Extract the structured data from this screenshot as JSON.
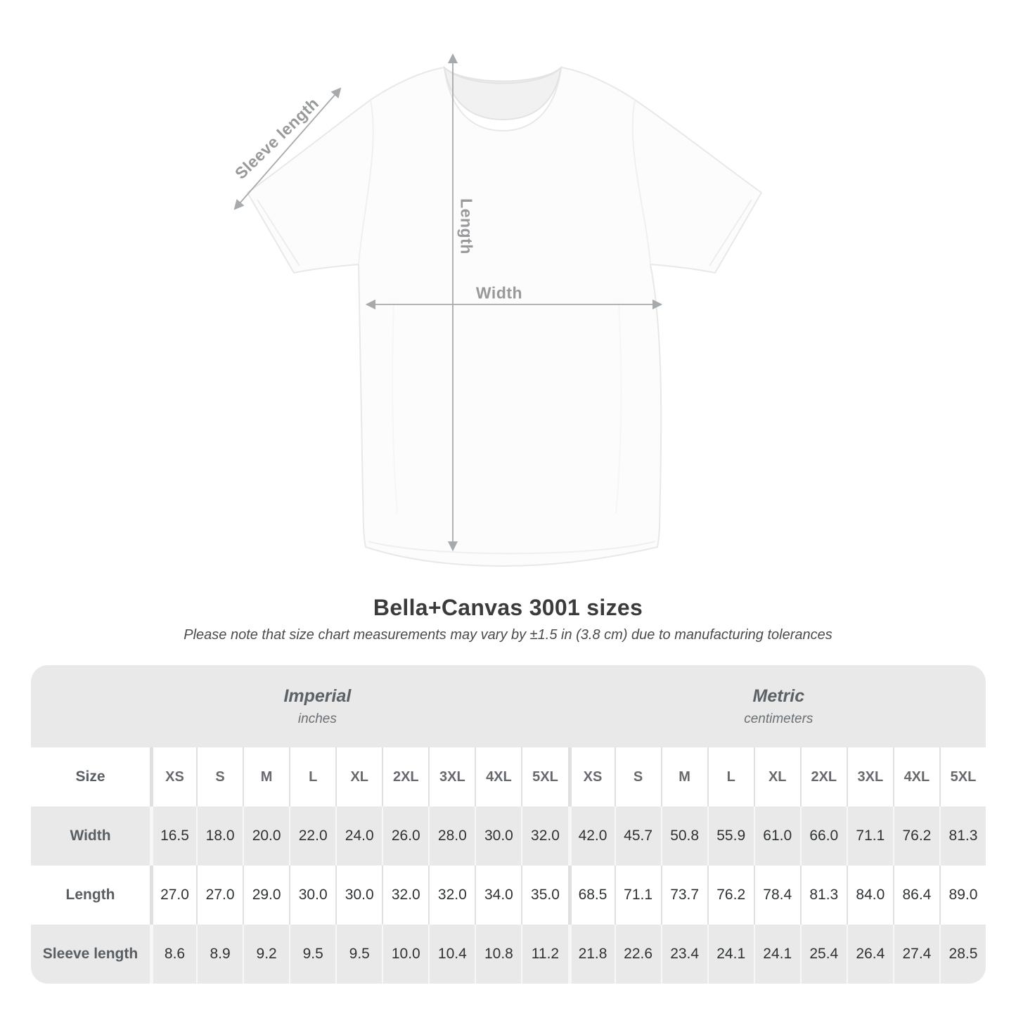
{
  "diagram": {
    "sleeve_label": "Sleeve length",
    "length_label": "Length",
    "width_label": "Width"
  },
  "heading": {
    "title": "Bella+Canvas 3001 sizes",
    "subtitle": "Please note that size chart measurements may vary by ±1.5 in (3.8 cm) due to manufacturing tolerances"
  },
  "table": {
    "size_header": "Size",
    "groups": [
      {
        "label": "Imperial",
        "sublabel": "inches"
      },
      {
        "label": "Metric",
        "sublabel": "centimeters"
      }
    ]
  },
  "chart_data": {
    "type": "table",
    "title": "Bella+Canvas 3001 sizes",
    "note": "Size chart measurements may vary by ±1.5 in (3.8 cm) due to manufacturing tolerances",
    "column_groups": [
      {
        "label": "Imperial",
        "unit": "inches"
      },
      {
        "label": "Metric",
        "unit": "centimeters"
      }
    ],
    "sizes": [
      "XS",
      "S",
      "M",
      "L",
      "XL",
      "2XL",
      "3XL",
      "4XL",
      "5XL"
    ],
    "rows": [
      {
        "label": "Width",
        "imperial": [
          16.5,
          18.0,
          20.0,
          22.0,
          24.0,
          26.0,
          28.0,
          30.0,
          32.0
        ],
        "metric": [
          42.0,
          45.7,
          50.8,
          55.9,
          61.0,
          66.0,
          71.1,
          76.2,
          81.3
        ]
      },
      {
        "label": "Length",
        "imperial": [
          27.0,
          27.0,
          29.0,
          30.0,
          30.0,
          32.0,
          32.0,
          34.0,
          35.0
        ],
        "metric": [
          68.5,
          71.1,
          73.7,
          76.2,
          78.4,
          81.3,
          84.0,
          86.4,
          89.0
        ]
      },
      {
        "label": "Sleeve length",
        "imperial": [
          8.6,
          8.9,
          9.2,
          9.5,
          9.5,
          10.0,
          10.4,
          10.8,
          11.2
        ],
        "metric": [
          21.8,
          22.6,
          23.4,
          24.1,
          24.1,
          25.4,
          26.4,
          27.4,
          28.5
        ]
      }
    ]
  },
  "colors": {
    "band_gray": "#e9e9e9",
    "separator_on_white": "#e0e0e0",
    "separator_on_gray": "#f7f7f7",
    "measure_gray": "#97999b",
    "title_dark": "#3b3b3b"
  }
}
